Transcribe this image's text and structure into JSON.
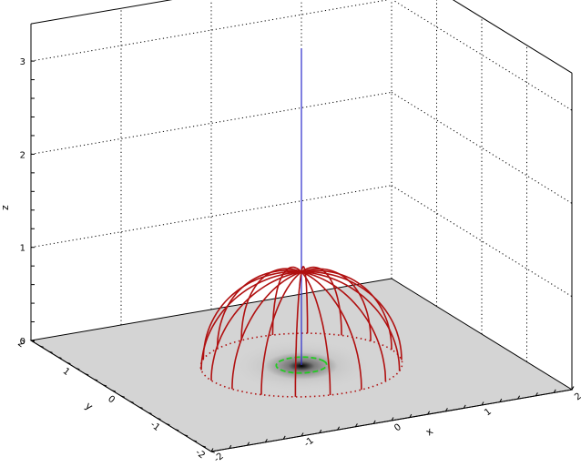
{
  "chart_data": {
    "type": "surface3d",
    "title": "",
    "axes": {
      "x": {
        "label": "x",
        "range": [
          -2,
          2
        ],
        "ticks": [
          "-2",
          "-1",
          "0",
          "1",
          "2"
        ]
      },
      "y": {
        "label": "y",
        "range": [
          -2,
          2
        ],
        "ticks": [
          "-2",
          "-1",
          "0",
          "1",
          "2"
        ]
      },
      "z": {
        "label": "z",
        "range": [
          0,
          3
        ],
        "ticks": [
          "0",
          "1",
          "2",
          "3"
        ]
      }
    },
    "grid": true,
    "floor": {
      "kind": "grayscale intensity map",
      "peak_at": [
        0,
        0
      ],
      "color_low": "#d4d4d4",
      "color_high": "#000000"
    },
    "dome": {
      "shape": "hemisphere",
      "center": [
        0,
        0,
        0
      ],
      "radius": 1.0,
      "meridians": 18,
      "color": "#b01010",
      "base_circle_style": "dotted"
    },
    "vertical_line": {
      "x": 0,
      "y": 0,
      "z_range": [
        0,
        3.4
      ],
      "color": "#2a2acc"
    },
    "green_circle": {
      "center": [
        0,
        0
      ],
      "radius": 0.25,
      "style": "dashed",
      "color": "#22cc22"
    }
  }
}
